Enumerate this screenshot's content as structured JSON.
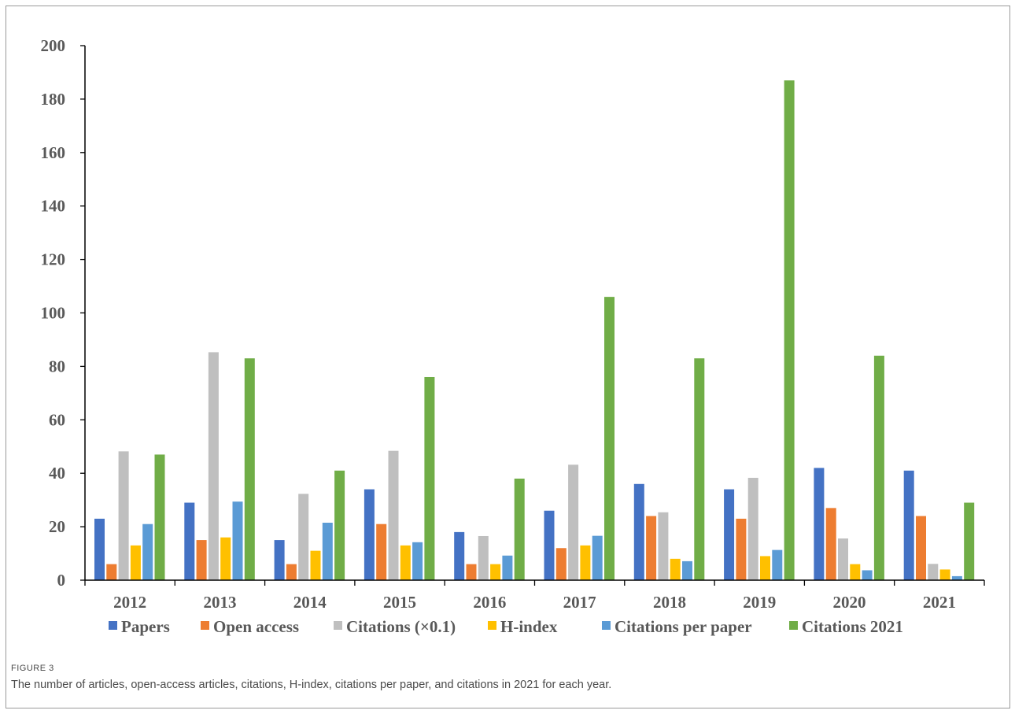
{
  "figure": {
    "label": "FIGURE 3",
    "caption": "The number of articles, open-access articles, citations, H-index, citations per paper, and citations in 2021 for each year."
  },
  "chart_data": {
    "type": "bar",
    "categories": [
      "2012",
      "2013",
      "2014",
      "2015",
      "2016",
      "2017",
      "2018",
      "2019",
      "2020",
      "2021"
    ],
    "ylim": [
      0,
      200
    ],
    "yticks": [
      0,
      20,
      40,
      60,
      80,
      100,
      120,
      140,
      160,
      180,
      200
    ],
    "grid": false,
    "legend_position": "bottom",
    "series": [
      {
        "name": "Papers",
        "color": "#4472c4",
        "values": [
          23,
          29,
          15,
          34,
          18,
          26,
          36,
          34,
          42,
          41
        ]
      },
      {
        "name": "Open access",
        "color": "#ed7d31",
        "values": [
          6,
          15,
          6,
          21,
          6,
          12,
          24,
          23,
          27,
          24
        ]
      },
      {
        "name": "Citations (×0.1)",
        "color": "#bfbfbf",
        "values": [
          48.2,
          85.3,
          32.3,
          48.4,
          16.5,
          43.2,
          25.4,
          38.3,
          15.6,
          6.1
        ]
      },
      {
        "name": "H-index",
        "color": "#ffc000",
        "values": [
          13,
          16,
          11,
          13,
          6,
          13,
          8,
          9,
          6,
          4
        ]
      },
      {
        "name": "Citations per paper",
        "color": "#5b9bd5",
        "values": [
          21,
          29.4,
          21.5,
          14.2,
          9.2,
          16.6,
          7.1,
          11.3,
          3.7,
          1.5
        ]
      },
      {
        "name": "Citations 2021",
        "color": "#70ad47",
        "values": [
          47,
          83,
          41,
          76,
          38,
          106,
          83,
          187,
          84,
          29
        ]
      }
    ]
  }
}
